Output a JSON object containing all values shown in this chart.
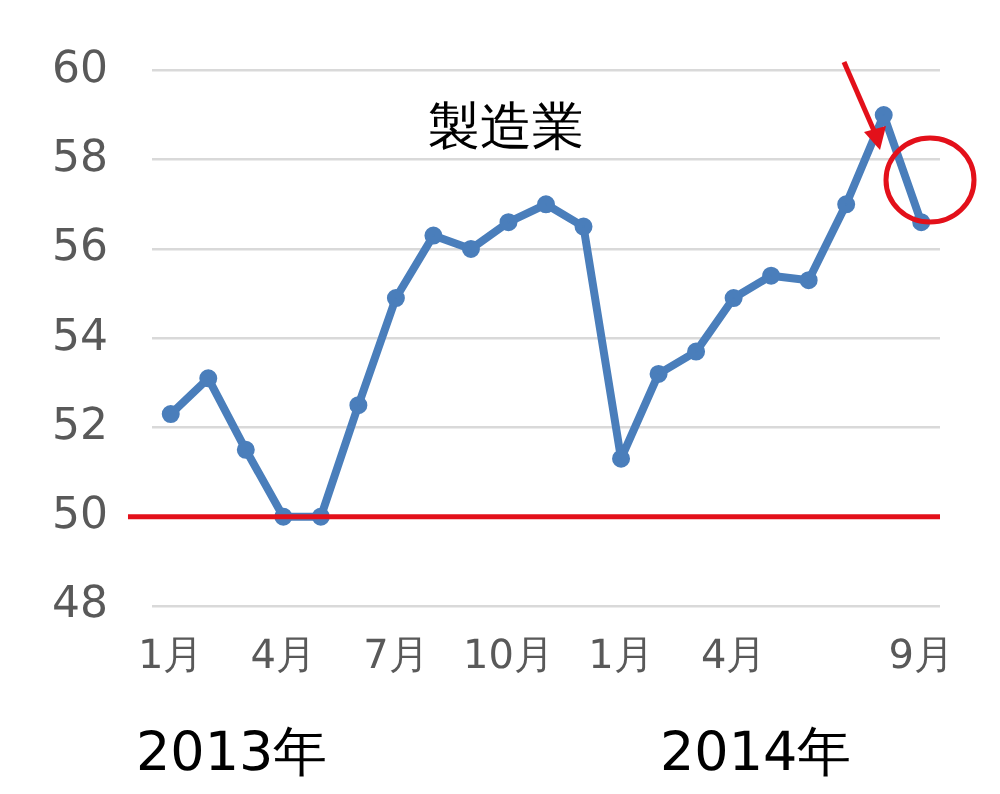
{
  "chart_data": {
    "type": "line",
    "title": "製造業",
    "categories": [
      "1月",
      null,
      null,
      "4月",
      null,
      null,
      "7月",
      null,
      null,
      "10月",
      null,
      null,
      "1月",
      null,
      null,
      "4月",
      null,
      null,
      null,
      null,
      "9月"
    ],
    "series": [
      {
        "color": "#4a7ebb",
        "values": [
          52.3,
          53.1,
          51.5,
          50.0,
          50.0,
          52.5,
          54.9,
          56.3,
          56.0,
          56.6,
          57.0,
          56.5,
          51.3,
          53.2,
          53.7,
          54.9,
          55.4,
          55.3,
          57.0,
          59.0,
          56.6
        ]
      }
    ],
    "ylim": [
      48,
      60
    ],
    "yticks": [
      48,
      50,
      52,
      54,
      56,
      58,
      60
    ],
    "ref_lines": [
      {
        "axis": "y",
        "value": 50,
        "color": "#e3101a"
      }
    ],
    "annotations": [
      "2013年",
      "2014年"
    ],
    "grid": "y",
    "legend": false,
    "marker": "circle",
    "line_style": "solid"
  }
}
